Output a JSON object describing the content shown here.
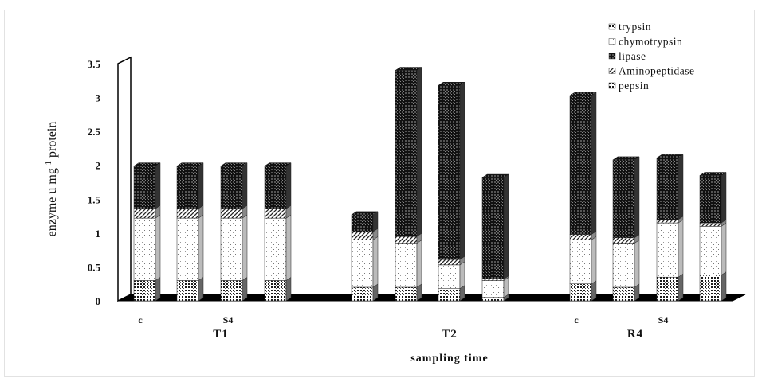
{
  "chart_data": {
    "type": "bar",
    "stacked": true,
    "three_d": true,
    "xlabel": "sampling time",
    "ylabel": "enzyme u mg-1 protein",
    "ylabel_parts": {
      "pre": "enzyme u mg",
      "sup": "-1",
      "post": " protein"
    },
    "ylim": [
      0,
      3.5
    ],
    "yticks": [
      "0",
      "0.5",
      "1",
      "1.5",
      "2",
      "2.5",
      "3",
      "3.5"
    ],
    "ytick_values": [
      0,
      0.5,
      1,
      1.5,
      2,
      2.5,
      3,
      3.5
    ],
    "groups": [
      {
        "name": "T1",
        "categories": [
          "c",
          "",
          "S4",
          ""
        ]
      },
      {
        "name": "T2",
        "categories": [
          "",
          "",
          "",
          ""
        ]
      },
      {
        "name": "R4",
        "categories": [
          "c",
          "",
          "S4",
          ""
        ]
      }
    ],
    "legend_position": "top-right",
    "legend_order": [
      "trypsin",
      "chymotrypsin",
      "lipase",
      "Aminopeptidase",
      "pepsin"
    ],
    "series": [
      {
        "name": "pepsin",
        "pattern": "dots-dense",
        "values": [
          0.3,
          0.3,
          0.3,
          0.3,
          0.2,
          0.2,
          0.18,
          0.05,
          0.25,
          0.2,
          0.35,
          0.38
        ]
      },
      {
        "name": "chymotrypsin",
        "pattern": "dots-sparse",
        "values": [
          0.92,
          0.92,
          0.92,
          0.92,
          0.7,
          0.65,
          0.35,
          0.25,
          0.65,
          0.65,
          0.8,
          0.72
        ]
      },
      {
        "name": "Aminopeptidase",
        "pattern": "diagonal-hatch",
        "values": [
          0.14,
          0.14,
          0.14,
          0.14,
          0.12,
          0.1,
          0.08,
          0.02,
          0.08,
          0.08,
          0.05,
          0.05
        ]
      },
      {
        "name": "lipase",
        "pattern": "checker-dark",
        "values": [
          0.63,
          0.63,
          0.63,
          0.63,
          0.25,
          2.45,
          2.57,
          1.5,
          2.05,
          1.15,
          0.91,
          0.7
        ]
      },
      {
        "name": "trypsin",
        "pattern": "dots-dense",
        "values": [
          0,
          0,
          0,
          0,
          0,
          0,
          0,
          0,
          0,
          0,
          0,
          0
        ]
      }
    ]
  }
}
